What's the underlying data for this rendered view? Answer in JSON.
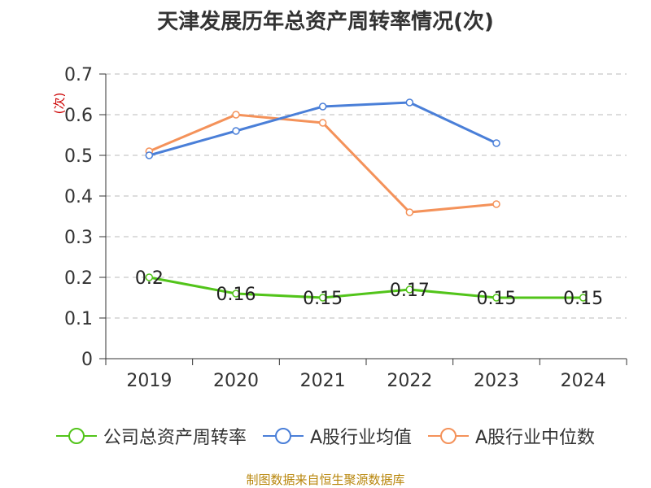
{
  "colors": {
    "series": [
      "#52c41a",
      "#4a7fd8",
      "#f4925a"
    ],
    "grid": "#bbbbbb",
    "axis": "#333333",
    "source": "#b8860b",
    "unit": "#cc0000"
  },
  "footer": {
    "source": "制图数据来自恒生聚源数据库"
  },
  "chart_data": {
    "type": "line",
    "title": "天津发展历年总资产周转率情况(次)",
    "ylabel": "(次)",
    "xlabel": "",
    "categories": [
      "2019",
      "2020",
      "2021",
      "2022",
      "2023",
      "2024"
    ],
    "ylim": [
      0,
      0.7
    ],
    "yticks": [
      "0",
      "0.1",
      "0.2",
      "0.3",
      "0.4",
      "0.5",
      "0.6",
      "0.7"
    ],
    "grid": true,
    "legend_position": "bottom",
    "series": [
      {
        "name": "公司总资产周转率",
        "values": [
          0.2,
          0.16,
          0.15,
          0.17,
          0.15,
          0.15
        ],
        "labels": [
          "0.2",
          "0.16",
          "0.15",
          "0.17",
          "0.15",
          "0.15"
        ]
      },
      {
        "name": "A股行业均值",
        "values": [
          0.5,
          0.56,
          0.62,
          0.63,
          0.53,
          null
        ]
      },
      {
        "name": "A股行业中位数",
        "values": [
          0.51,
          0.6,
          0.58,
          0.36,
          0.38,
          null
        ]
      }
    ]
  }
}
